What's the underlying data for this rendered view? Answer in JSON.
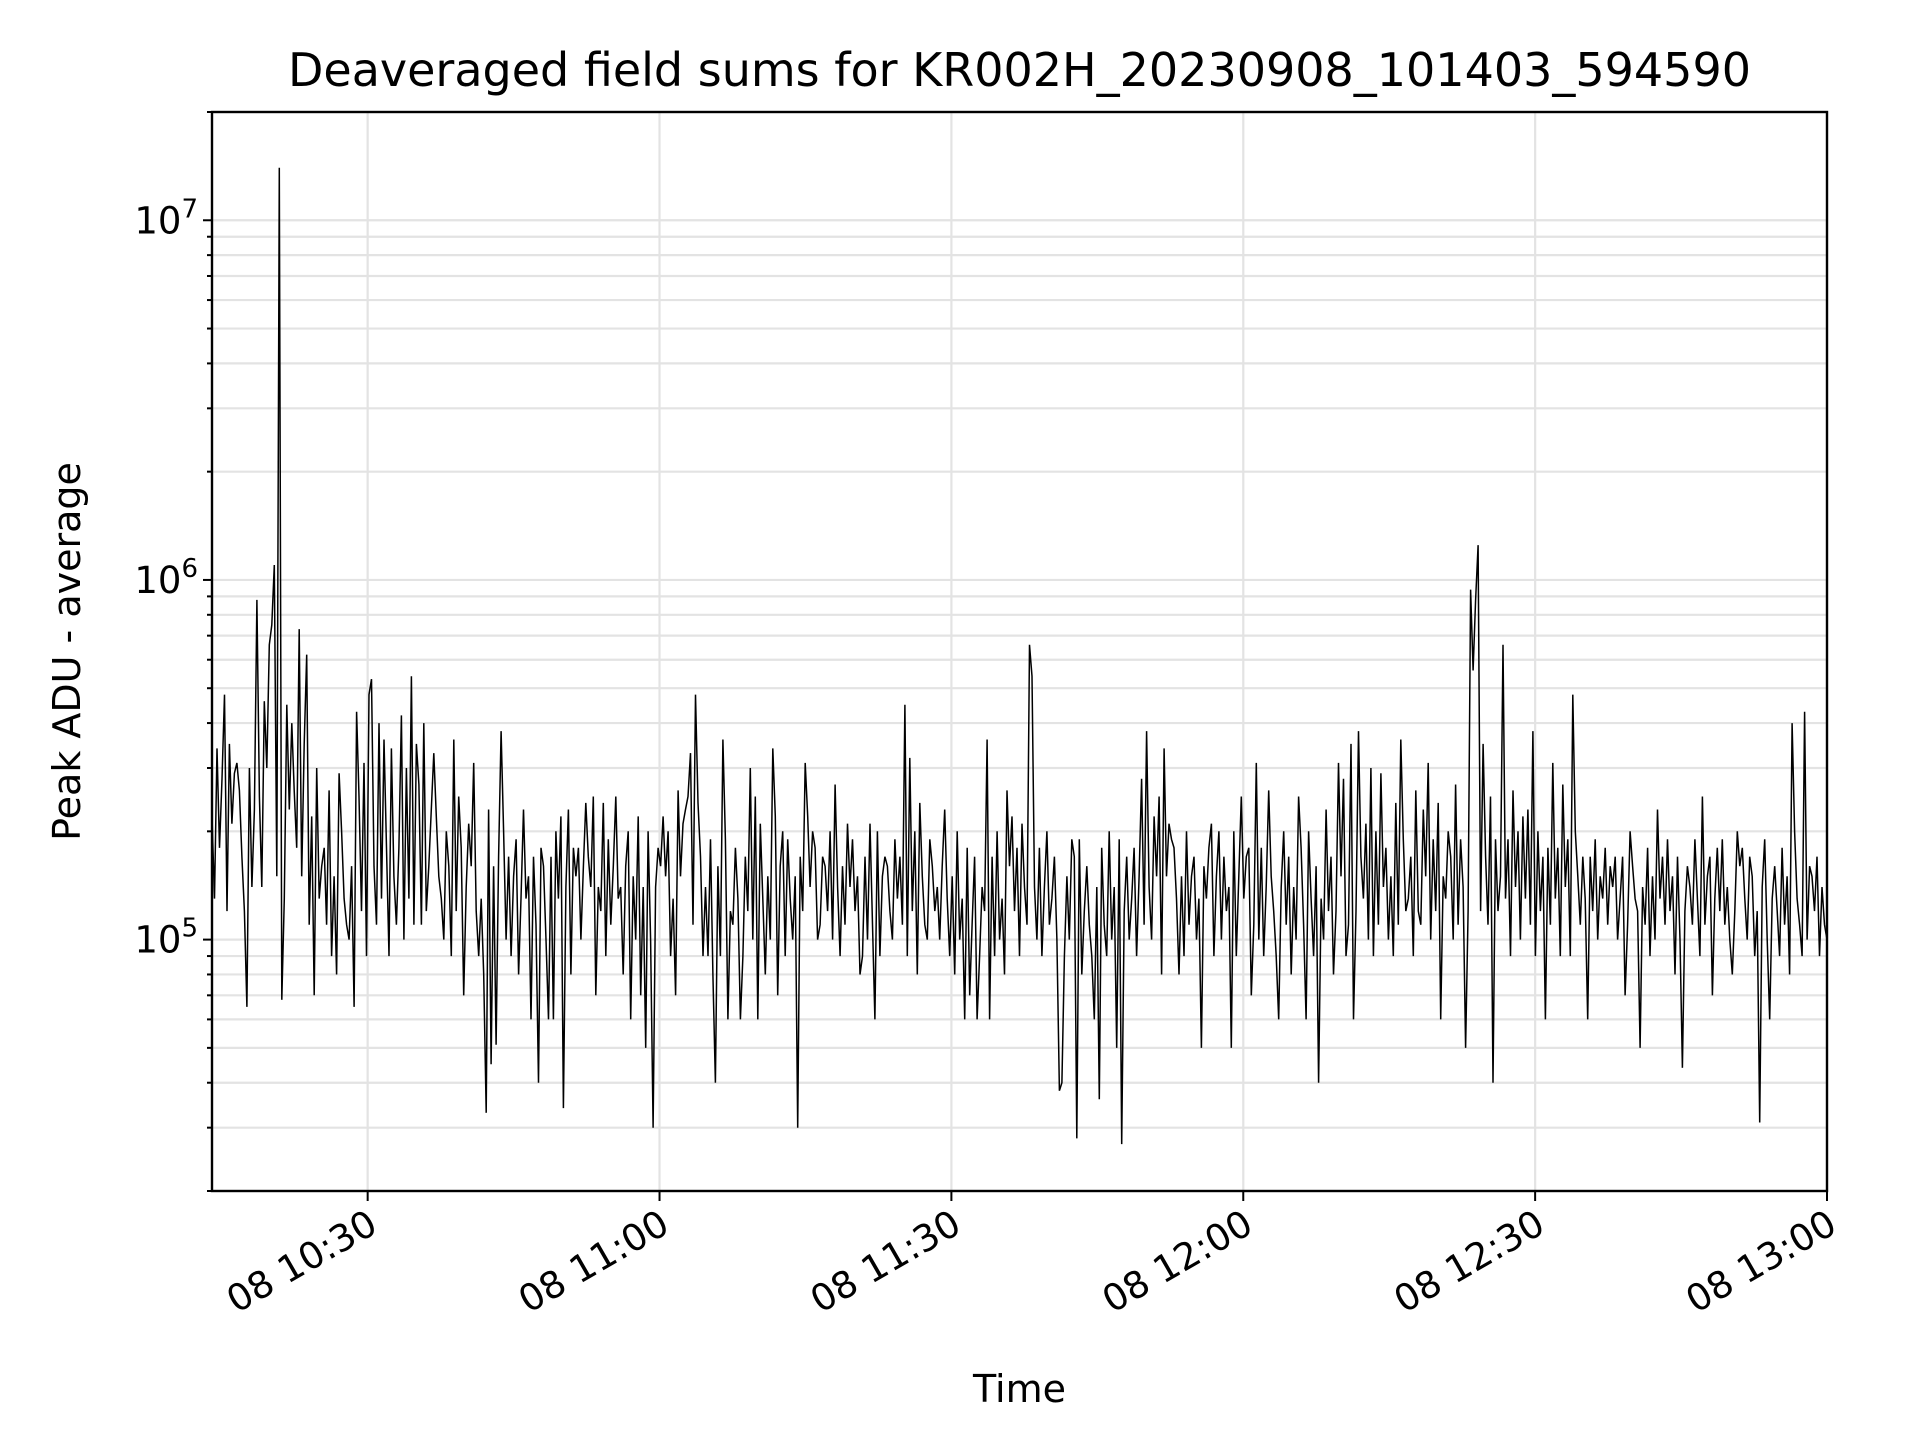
{
  "chart_data": {
    "type": "line",
    "title": "Deaveraged field sums for KR002H_20230908_101403_594590",
    "xlabel": "Time",
    "ylabel": "Peak ADU - average",
    "x_start": "2023-09-08 10:14",
    "x_end": "2023-09-08 13:00",
    "y_scale": "log",
    "ylim": [
      20000,
      20000000
    ],
    "grid": true,
    "x_ticks": [
      "08 10:30",
      "08 11:00",
      "08 11:30",
      "08 12:00",
      "08 12:30",
      "08 13:00"
    ],
    "y_ticks": [
      {
        "value": 100000,
        "base": "10",
        "exp": "5"
      },
      {
        "value": 1000000,
        "base": "10",
        "exp": "6"
      },
      {
        "value": 10000000,
        "base": "10",
        "exp": "7"
      }
    ],
    "series": [
      {
        "color": "#000000",
        "values": [
          220000,
          130000,
          340000,
          180000,
          280000,
          480000,
          120000,
          350000,
          210000,
          290000,
          310000,
          260000,
          170000,
          120000,
          65000,
          300000,
          140000,
          230000,
          880000,
          250000,
          140000,
          460000,
          300000,
          660000,
          750000,
          1100000,
          150000,
          14000000,
          68000,
          130000,
          450000,
          230000,
          400000,
          260000,
          180000,
          730000,
          150000,
          350000,
          620000,
          110000,
          220000,
          70000,
          300000,
          130000,
          160000,
          180000,
          110000,
          260000,
          90000,
          150000,
          80000,
          290000,
          200000,
          130000,
          110000,
          100000,
          160000,
          65000,
          430000,
          250000,
          120000,
          310000,
          90000,
          480000,
          530000,
          160000,
          110000,
          400000,
          130000,
          360000,
          180000,
          90000,
          340000,
          150000,
          110000,
          180000,
          420000,
          100000,
          300000,
          130000,
          540000,
          110000,
          350000,
          270000,
          110000,
          400000,
          120000,
          160000,
          230000,
          330000,
          220000,
          150000,
          130000,
          100000,
          200000,
          160000,
          90000,
          360000,
          120000,
          250000,
          180000,
          70000,
          140000,
          210000,
          160000,
          310000,
          120000,
          90000,
          130000,
          80000,
          33000,
          230000,
          45000,
          160000,
          51000,
          170000,
          380000,
          200000,
          100000,
          170000,
          90000,
          150000,
          190000,
          80000,
          130000,
          230000,
          130000,
          150000,
          60000,
          170000,
          110000,
          40000,
          180000,
          160000,
          100000,
          60000,
          170000,
          60000,
          200000,
          130000,
          220000,
          34000,
          140000,
          230000,
          80000,
          180000,
          150000,
          180000,
          100000,
          160000,
          240000,
          170000,
          140000,
          250000,
          70000,
          140000,
          120000,
          240000,
          90000,
          190000,
          110000,
          160000,
          250000,
          130000,
          140000,
          80000,
          160000,
          200000,
          60000,
          150000,
          100000,
          220000,
          70000,
          140000,
          50000,
          200000,
          100000,
          30000,
          140000,
          180000,
          160000,
          220000,
          150000,
          200000,
          90000,
          130000,
          70000,
          260000,
          150000,
          210000,
          230000,
          250000,
          330000,
          110000,
          480000,
          240000,
          170000,
          90000,
          140000,
          90000,
          190000,
          80000,
          40000,
          160000,
          90000,
          360000,
          190000,
          60000,
          120000,
          110000,
          180000,
          130000,
          60000,
          90000,
          170000,
          120000,
          300000,
          100000,
          250000,
          60000,
          210000,
          130000,
          80000,
          150000,
          100000,
          340000,
          220000,
          70000,
          160000,
          200000,
          90000,
          190000,
          130000,
          100000,
          150000,
          30000,
          170000,
          120000,
          310000,
          220000,
          140000,
          200000,
          180000,
          100000,
          110000,
          170000,
          160000,
          120000,
          200000,
          100000,
          270000,
          140000,
          90000,
          160000,
          110000,
          210000,
          140000,
          190000,
          120000,
          150000,
          80000,
          90000,
          170000,
          100000,
          210000,
          110000,
          60000,
          200000,
          90000,
          150000,
          170000,
          160000,
          120000,
          100000,
          190000,
          130000,
          170000,
          110000,
          450000,
          90000,
          320000,
          120000,
          200000,
          80000,
          240000,
          150000,
          110000,
          100000,
          190000,
          160000,
          120000,
          140000,
          100000,
          160000,
          230000,
          130000,
          90000,
          150000,
          80000,
          200000,
          100000,
          130000,
          60000,
          180000,
          70000,
          110000,
          170000,
          60000,
          90000,
          140000,
          120000,
          360000,
          60000,
          170000,
          90000,
          200000,
          100000,
          130000,
          80000,
          260000,
          160000,
          220000,
          120000,
          180000,
          90000,
          210000,
          140000,
          110000,
          660000,
          540000,
          140000,
          100000,
          180000,
          90000,
          140000,
          200000,
          110000,
          130000,
          170000,
          100000,
          38000,
          40000,
          90000,
          150000,
          100000,
          190000,
          170000,
          28000,
          190000,
          80000,
          120000,
          160000,
          110000,
          90000,
          60000,
          140000,
          36000,
          180000,
          110000,
          90000,
          200000,
          100000,
          140000,
          50000,
          190000,
          27000,
          120000,
          170000,
          100000,
          130000,
          180000,
          90000,
          150000,
          280000,
          110000,
          380000,
          140000,
          100000,
          220000,
          150000,
          250000,
          80000,
          340000,
          150000,
          210000,
          190000,
          180000,
          130000,
          80000,
          150000,
          90000,
          200000,
          110000,
          150000,
          170000,
          100000,
          130000,
          50000,
          160000,
          130000,
          180000,
          210000,
          90000,
          150000,
          200000,
          100000,
          170000,
          120000,
          140000,
          50000,
          200000,
          90000,
          150000,
          250000,
          130000,
          170000,
          180000,
          70000,
          110000,
          310000,
          100000,
          180000,
          90000,
          140000,
          260000,
          150000,
          120000,
          90000,
          60000,
          140000,
          200000,
          110000,
          170000,
          80000,
          140000,
          100000,
          250000,
          180000,
          110000,
          60000,
          200000,
          130000,
          90000,
          160000,
          40000,
          130000,
          100000,
          230000,
          120000,
          170000,
          80000,
          120000,
          310000,
          150000,
          280000,
          90000,
          110000,
          350000,
          60000,
          120000,
          380000,
          170000,
          130000,
          210000,
          100000,
          300000,
          90000,
          200000,
          110000,
          290000,
          140000,
          180000,
          100000,
          150000,
          90000,
          240000,
          110000,
          360000,
          190000,
          120000,
          130000,
          170000,
          90000,
          260000,
          120000,
          110000,
          230000,
          150000,
          310000,
          100000,
          190000,
          120000,
          240000,
          60000,
          150000,
          130000,
          200000,
          170000,
          100000,
          270000,
          110000,
          190000,
          140000,
          50000,
          120000,
          940000,
          560000,
          880000,
          1250000,
          120000,
          350000,
          170000,
          110000,
          250000,
          40000,
          190000,
          120000,
          150000,
          660000,
          130000,
          190000,
          90000,
          260000,
          140000,
          200000,
          100000,
          220000,
          130000,
          230000,
          110000,
          380000,
          90000,
          200000,
          120000,
          170000,
          60000,
          180000,
          110000,
          310000,
          130000,
          180000,
          90000,
          270000,
          140000,
          190000,
          90000,
          480000,
          200000,
          150000,
          110000,
          170000,
          130000,
          60000,
          170000,
          120000,
          190000,
          100000,
          150000,
          130000,
          180000,
          110000,
          160000,
          140000,
          170000,
          100000,
          130000,
          170000,
          70000,
          110000,
          200000,
          160000,
          130000,
          120000,
          50000,
          140000,
          110000,
          180000,
          90000,
          150000,
          100000,
          230000,
          130000,
          170000,
          110000,
          190000,
          120000,
          150000,
          80000,
          170000,
          100000,
          44000,
          120000,
          160000,
          140000,
          110000,
          190000,
          130000,
          90000,
          250000,
          110000,
          150000,
          170000,
          70000,
          130000,
          180000,
          120000,
          190000,
          110000,
          140000,
          100000,
          80000,
          120000,
          200000,
          160000,
          180000,
          130000,
          100000,
          170000,
          150000,
          90000,
          120000,
          31000,
          140000,
          190000,
          100000,
          60000,
          130000,
          160000,
          120000,
          90000,
          180000,
          110000,
          150000,
          80000,
          400000,
          200000,
          130000,
          110000,
          90000,
          430000,
          100000,
          160000,
          150000,
          120000,
          170000,
          90000,
          140000,
          110000,
          100000
        ]
      }
    ]
  }
}
